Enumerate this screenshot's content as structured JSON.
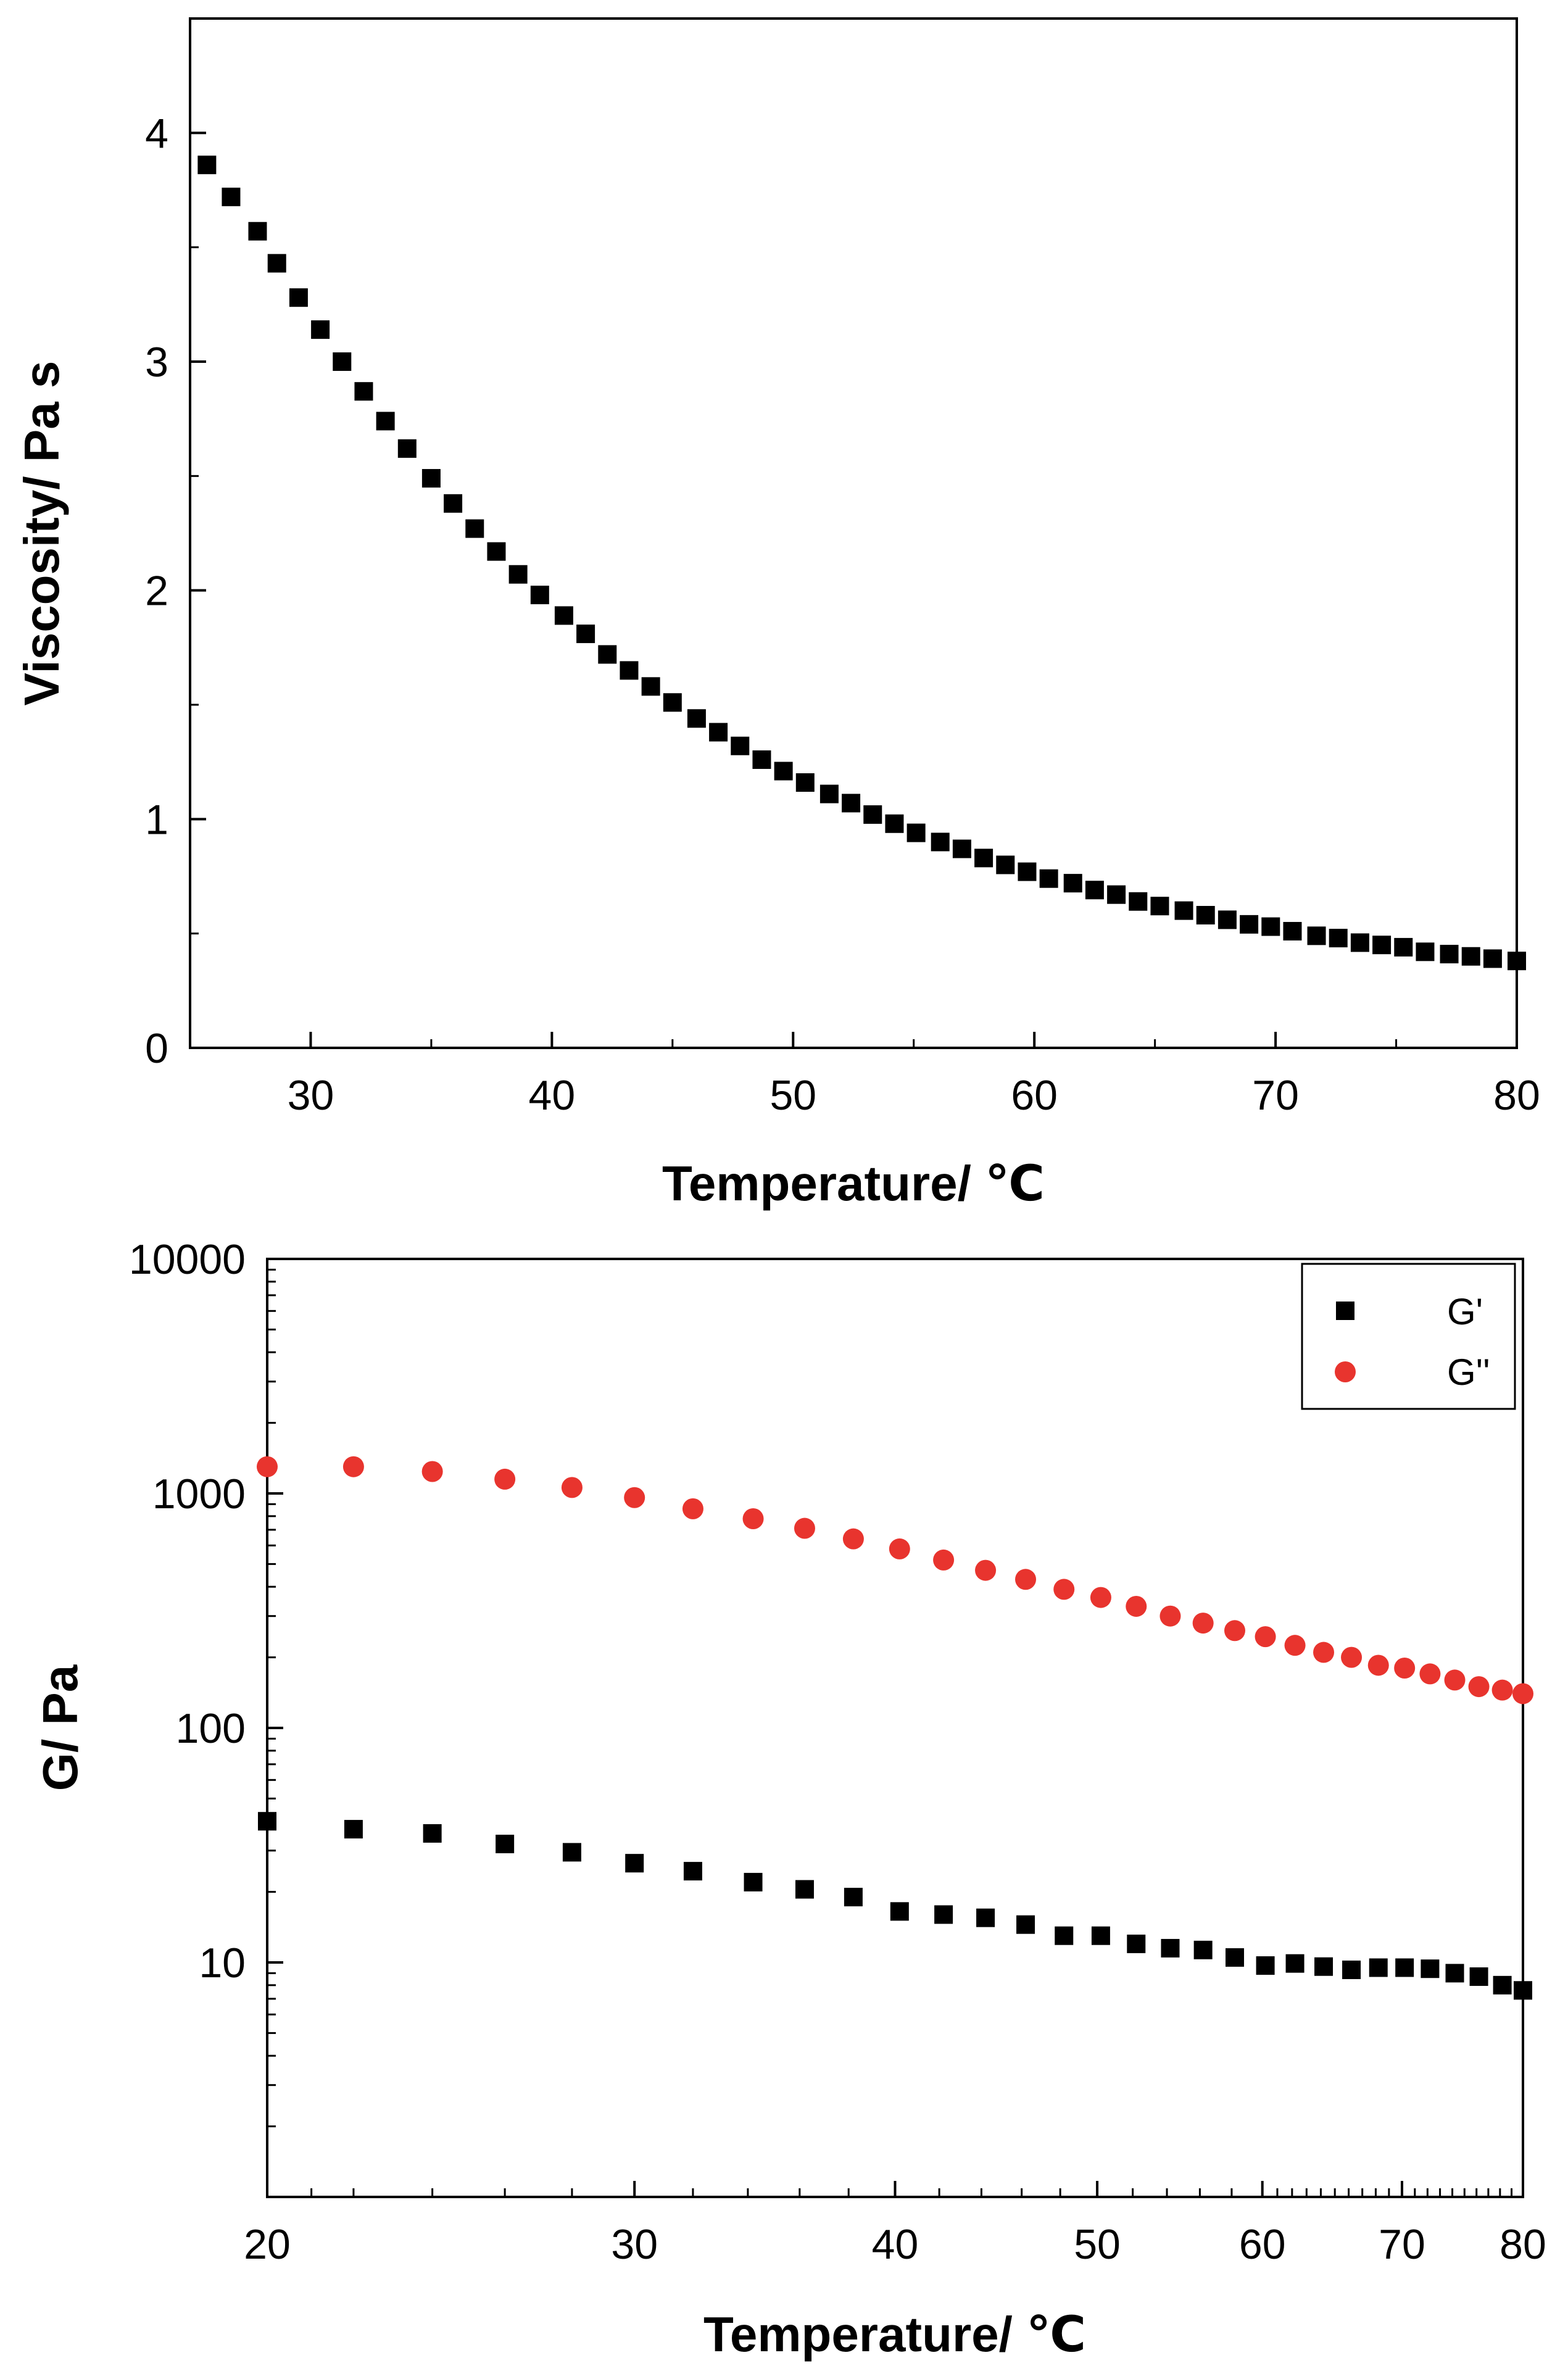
{
  "chart_data": [
    {
      "type": "scatter",
      "title": "",
      "xlabel": "Temperature/ ℃",
      "ylabel": "Viscosity/ Pa s",
      "xlim": [
        25,
        80
      ],
      "ylim": [
        0,
        4.5
      ],
      "xscale": "linear",
      "yscale": "linear",
      "xticks": [
        30,
        40,
        50,
        60,
        70,
        80
      ],
      "yticks": [
        0,
        1,
        2,
        3,
        4
      ],
      "xtick_labels": [
        "30",
        "40",
        "50",
        "60",
        "70",
        "80"
      ],
      "ytick_labels": [
        "0",
        "1",
        "2",
        "3",
        "4"
      ],
      "grid": false,
      "series": [
        {
          "name": "Viscosity",
          "marker": "square",
          "color": "#000000",
          "x": [
            25.7,
            26.7,
            27.8,
            28.6,
            29.5,
            30.4,
            31.3,
            32.2,
            33.1,
            34.0,
            35.0,
            35.9,
            36.8,
            37.7,
            38.6,
            39.5,
            40.5,
            41.4,
            42.3,
            43.2,
            44.1,
            45.0,
            46.0,
            46.9,
            47.8,
            48.7,
            49.6,
            50.5,
            51.5,
            52.4,
            53.3,
            54.2,
            55.1,
            56.1,
            57.0,
            57.9,
            58.8,
            59.7,
            60.6,
            61.6,
            62.5,
            63.4,
            64.3,
            65.2,
            66.2,
            67.1,
            68.0,
            68.9,
            69.8,
            70.7,
            71.7,
            72.6,
            73.5,
            74.4,
            75.3,
            76.2,
            77.2,
            78.1,
            79.0,
            80.0
          ],
          "y": [
            3.86,
            3.72,
            3.57,
            3.43,
            3.28,
            3.14,
            3.0,
            2.87,
            2.74,
            2.62,
            2.49,
            2.38,
            2.27,
            2.17,
            2.07,
            1.98,
            1.89,
            1.81,
            1.72,
            1.65,
            1.58,
            1.51,
            1.44,
            1.38,
            1.32,
            1.26,
            1.21,
            1.16,
            1.11,
            1.07,
            1.02,
            0.98,
            0.94,
            0.9,
            0.87,
            0.83,
            0.8,
            0.77,
            0.74,
            0.72,
            0.69,
            0.67,
            0.64,
            0.62,
            0.6,
            0.58,
            0.56,
            0.54,
            0.53,
            0.51,
            0.49,
            0.48,
            0.46,
            0.45,
            0.44,
            0.42,
            0.41,
            0.4,
            0.39,
            0.38
          ]
        }
      ],
      "legend": null
    },
    {
      "type": "scatter",
      "title": "",
      "xlabel": "Temperature/ ℃",
      "ylabel": "G/ Pa",
      "xlim": [
        20,
        80
      ],
      "ylim": [
        1,
        10000
      ],
      "xscale": "log",
      "yscale": "log",
      "xticks": [
        20,
        30,
        40,
        50,
        60,
        70,
        80
      ],
      "yticks": [
        10,
        100,
        1000,
        10000
      ],
      "xtick_labels": [
        "20",
        "30",
        "40",
        "50",
        "60",
        "70",
        "80"
      ],
      "ytick_labels": [
        "10",
        "100",
        "1000",
        "10000"
      ],
      "grid": false,
      "series": [
        {
          "name": "G'",
          "marker": "square",
          "color": "#000000",
          "x": [
            20.0,
            22.0,
            24.0,
            26.0,
            28.0,
            30.0,
            32.0,
            34.2,
            36.2,
            38.2,
            40.2,
            42.2,
            44.2,
            46.2,
            48.2,
            50.2,
            52.2,
            54.2,
            56.2,
            58.2,
            60.2,
            62.2,
            64.2,
            66.2,
            68.2,
            70.2,
            72.2,
            74.2,
            76.2,
            78.2,
            80.0
          ],
          "y": [
            40,
            37,
            35.5,
            32,
            29.5,
            26.5,
            24.5,
            22,
            20.5,
            19,
            16.5,
            16,
            15.5,
            14.5,
            13,
            13,
            12,
            11.5,
            11.3,
            10.5,
            9.7,
            9.9,
            9.6,
            9.3,
            9.5,
            9.5,
            9.4,
            9.0,
            8.7,
            8.0,
            7.6
          ]
        },
        {
          "name": "G''",
          "marker": "circle",
          "color": "#e8342e",
          "x": [
            20.0,
            22.0,
            24.0,
            26.0,
            28.0,
            30.0,
            32.0,
            34.2,
            36.2,
            38.2,
            40.2,
            42.2,
            44.2,
            46.2,
            48.2,
            50.2,
            52.2,
            54.2,
            56.2,
            58.2,
            60.2,
            62.2,
            64.2,
            66.2,
            68.2,
            70.2,
            72.2,
            74.2,
            76.2,
            78.2,
            80.0
          ],
          "y": [
            1300,
            1300,
            1240,
            1150,
            1060,
            960,
            860,
            780,
            710,
            640,
            580,
            520,
            470,
            430,
            390,
            360,
            330,
            300,
            280,
            260,
            245,
            225,
            210,
            200,
            185,
            180,
            170,
            160,
            150,
            145,
            140
          ]
        }
      ],
      "legend": {
        "position": "top-right",
        "entries": [
          "G'",
          "G''"
        ]
      }
    }
  ]
}
